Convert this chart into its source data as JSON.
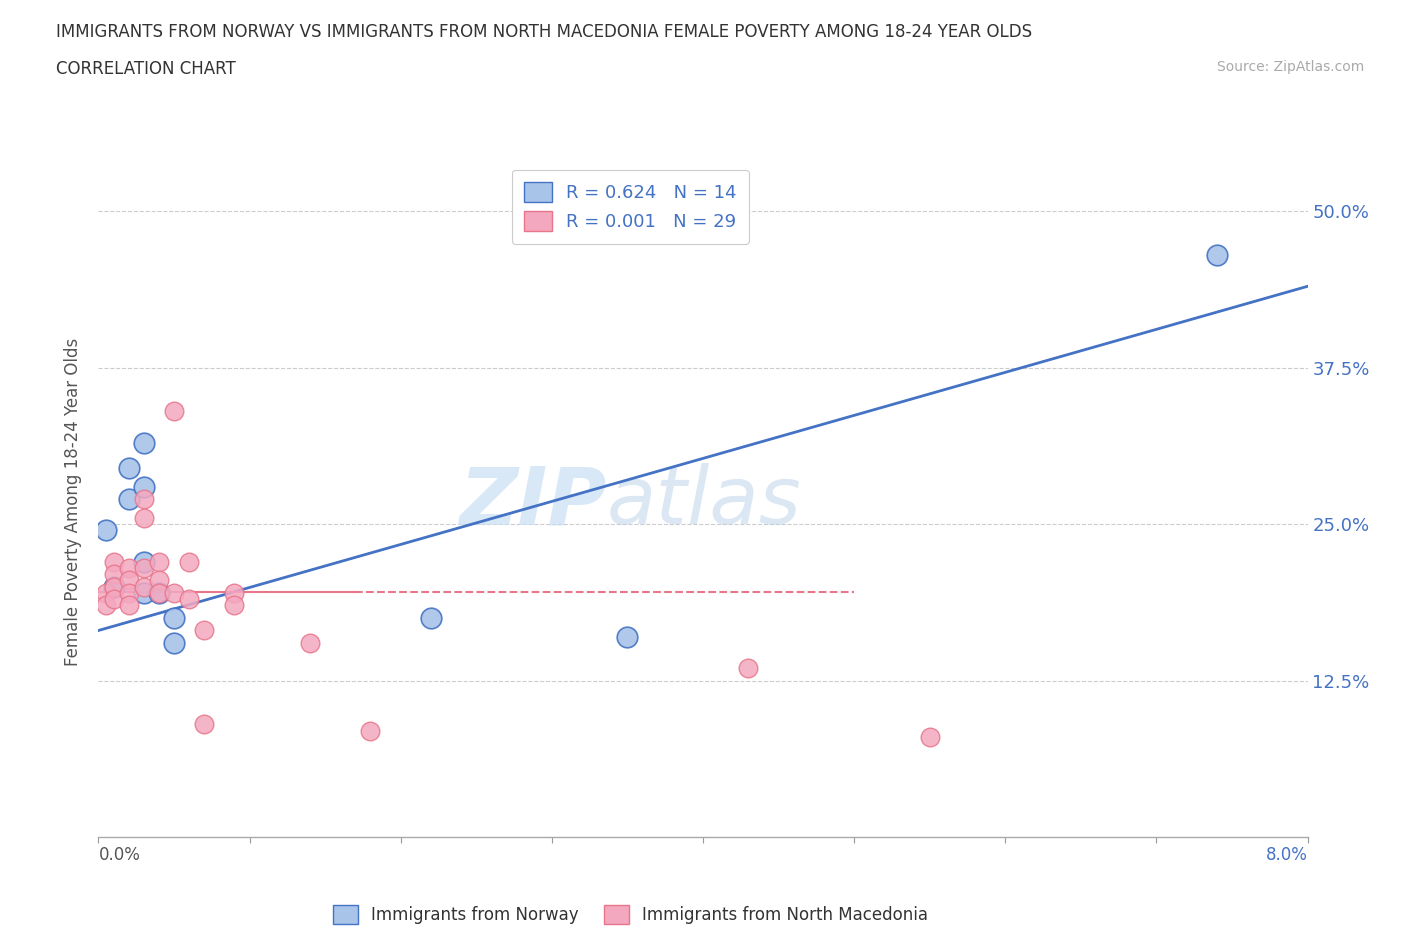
{
  "title": "IMMIGRANTS FROM NORWAY VS IMMIGRANTS FROM NORTH MACEDONIA FEMALE POVERTY AMONG 18-24 YEAR OLDS",
  "subtitle": "CORRELATION CHART",
  "source": "Source: ZipAtlas.com",
  "ylabel": "Female Poverty Among 18-24 Year Olds",
  "watermark_zip": "ZIP",
  "watermark_atlas": "atlas",
  "norway_color": "#a8c4e8",
  "macedonia_color": "#f4a8c0",
  "norway_line_color": "#4472c4",
  "macedonia_line_color": "#e8758a",
  "background_color": "#ffffff",
  "grid_color": "#cccccc",
  "yticks": [
    0.0,
    0.125,
    0.25,
    0.375,
    0.5
  ],
  "ytick_labels": [
    "",
    "12.5%",
    "25.0%",
    "37.5%",
    "50.0%"
  ],
  "xlim": [
    0.0,
    0.08
  ],
  "ylim": [
    0.0,
    0.535
  ],
  "norway_x": [
    0.0005,
    0.001,
    0.002,
    0.002,
    0.003,
    0.003,
    0.003,
    0.003,
    0.004,
    0.005,
    0.005,
    0.022,
    0.035,
    0.074
  ],
  "norway_y": [
    0.245,
    0.2,
    0.295,
    0.27,
    0.315,
    0.28,
    0.22,
    0.195,
    0.195,
    0.175,
    0.155,
    0.175,
    0.16,
    0.465
  ],
  "macedonia_x": [
    0.0005,
    0.0005,
    0.001,
    0.001,
    0.001,
    0.001,
    0.002,
    0.002,
    0.002,
    0.002,
    0.003,
    0.003,
    0.003,
    0.003,
    0.004,
    0.004,
    0.004,
    0.005,
    0.005,
    0.006,
    0.006,
    0.007,
    0.007,
    0.009,
    0.009,
    0.014,
    0.018,
    0.043,
    0.055
  ],
  "macedonia_y": [
    0.195,
    0.185,
    0.22,
    0.21,
    0.2,
    0.19,
    0.215,
    0.205,
    0.195,
    0.185,
    0.27,
    0.255,
    0.215,
    0.2,
    0.22,
    0.205,
    0.195,
    0.34,
    0.195,
    0.22,
    0.19,
    0.165,
    0.09,
    0.195,
    0.185,
    0.155,
    0.085,
    0.135,
    0.08
  ],
  "norway_trendline_x": [
    0.0,
    0.08
  ],
  "norway_trendline_y": [
    0.165,
    0.44
  ],
  "macedonia_trendline_x": [
    0.0,
    0.05
  ],
  "macedonia_trendline_y": [
    0.196,
    0.196
  ],
  "bottom_legend_norway": "Immigrants from Norway",
  "bottom_legend_macedonia": "Immigrants from North Macedonia"
}
